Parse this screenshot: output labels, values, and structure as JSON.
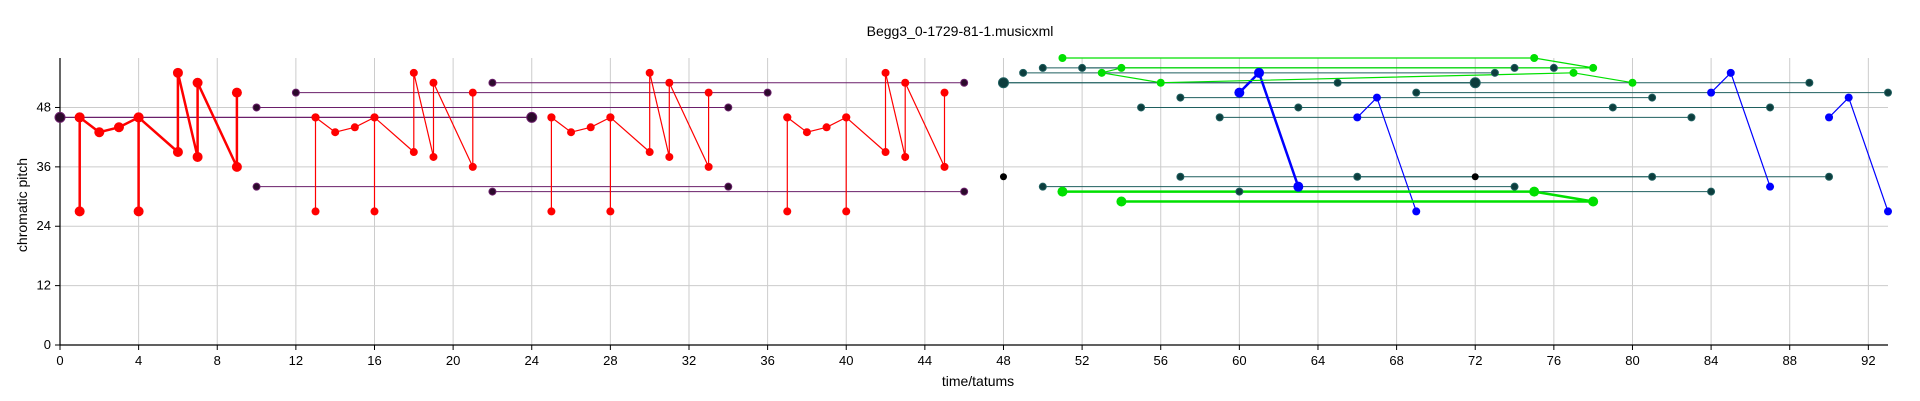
{
  "chart_data": {
    "type": "line",
    "title": "Begg3_0-1729-81-1.musicxml",
    "xlabel": "time/tatums",
    "ylabel": "chromatic pitch",
    "xlim": [
      0,
      93
    ],
    "ylim": [
      0,
      58
    ],
    "xticks": [
      0,
      4,
      8,
      12,
      16,
      20,
      24,
      28,
      32,
      36,
      40,
      44,
      48,
      52,
      56,
      60,
      64,
      68,
      72,
      76,
      80,
      84,
      88,
      92
    ],
    "yticks": [
      0,
      12,
      24,
      36,
      48
    ],
    "grid": true,
    "legend": "none",
    "colors": {
      "red": "#ff0000",
      "purple": "#6a1f6a",
      "teal": "#1f5f5f",
      "blue": "#0000ff",
      "green": "#00e000",
      "dot_dark": "#0d3d3d",
      "dot_purple": "#2b0a2b"
    },
    "series": [
      {
        "color": "#ff0000",
        "width": 2.5,
        "r": 5,
        "points": [
          [
            1,
            46
          ],
          [
            1,
            27
          ],
          [
            1,
            46
          ],
          [
            2,
            43
          ],
          [
            3,
            44
          ],
          [
            4,
            46
          ],
          [
            4,
            27
          ],
          [
            4,
            46
          ],
          [
            6,
            39
          ],
          [
            6,
            55
          ],
          [
            7,
            38
          ],
          [
            7,
            53
          ],
          [
            9,
            36
          ],
          [
            9,
            51
          ]
        ]
      },
      {
        "color": "#ff0000",
        "width": 1.2,
        "r": 4,
        "points": [
          [
            13,
            46
          ],
          [
            13,
            27
          ],
          [
            13,
            46
          ],
          [
            14,
            43
          ],
          [
            15,
            44
          ],
          [
            16,
            46
          ],
          [
            16,
            27
          ],
          [
            16,
            46
          ],
          [
            18,
            39
          ],
          [
            18,
            55
          ],
          [
            19,
            38
          ],
          [
            19,
            53
          ],
          [
            21,
            36
          ],
          [
            21,
            51
          ]
        ]
      },
      {
        "color": "#ff0000",
        "width": 1.2,
        "r": 4,
        "points": [
          [
            25,
            46
          ],
          [
            25,
            27
          ],
          [
            25,
            46
          ],
          [
            26,
            43
          ],
          [
            27,
            44
          ],
          [
            28,
            46
          ],
          [
            28,
            27
          ],
          [
            28,
            46
          ],
          [
            30,
            39
          ],
          [
            30,
            55
          ],
          [
            31,
            38
          ],
          [
            31,
            53
          ],
          [
            33,
            36
          ],
          [
            33,
            51
          ]
        ]
      },
      {
        "color": "#ff0000",
        "width": 1.2,
        "r": 4,
        "points": [
          [
            37,
            46
          ],
          [
            37,
            27
          ],
          [
            37,
            46
          ],
          [
            38,
            43
          ],
          [
            39,
            44
          ],
          [
            40,
            46
          ],
          [
            40,
            27
          ],
          [
            40,
            46
          ],
          [
            42,
            39
          ],
          [
            42,
            55
          ],
          [
            43,
            38
          ],
          [
            43,
            53
          ],
          [
            45,
            36
          ],
          [
            45,
            51
          ]
        ]
      },
      {
        "color": "#0000ff",
        "width": 2.5,
        "r": 5,
        "points": [
          [
            60,
            51
          ],
          [
            61,
            55
          ],
          [
            63,
            32
          ]
        ]
      },
      {
        "color": "#0000ff",
        "width": 1.2,
        "r": 4,
        "points": [
          [
            66,
            46
          ],
          [
            67,
            50
          ],
          [
            69,
            27
          ]
        ]
      },
      {
        "color": "#0000ff",
        "width": 1.2,
        "r": 4,
        "points": [
          [
            84,
            51
          ],
          [
            85,
            55
          ],
          [
            87,
            32
          ]
        ]
      },
      {
        "color": "#0000ff",
        "width": 1.2,
        "r": 4,
        "points": [
          [
            90,
            46
          ],
          [
            91,
            50
          ],
          [
            93,
            27
          ]
        ]
      },
      {
        "color": "#00e000",
        "width": 1.2,
        "r": 4,
        "points": [
          [
            51,
            58
          ],
          [
            75,
            58
          ],
          [
            78,
            56
          ],
          [
            54,
            56
          ],
          [
            53,
            55
          ],
          [
            56,
            53
          ],
          [
            77,
            55
          ],
          [
            80,
            53
          ]
        ]
      },
      {
        "color": "#00e000",
        "width": 2.5,
        "r": 5,
        "points": [
          [
            51,
            31
          ],
          [
            75,
            31
          ],
          [
            78,
            29
          ],
          [
            54,
            29
          ]
        ]
      }
    ],
    "segments": [
      {
        "color": "#6a1f6a",
        "width": 1.2,
        "r": 5,
        "x1": 0,
        "y1": 46,
        "x2": 24,
        "y2": 46
      },
      {
        "color": "#6a1f6a",
        "width": 1,
        "r": 3.5,
        "x1": 10,
        "y1": 48,
        "x2": 34,
        "y2": 48
      },
      {
        "color": "#6a1f6a",
        "width": 1,
        "r": 3.5,
        "x1": 12,
        "y1": 51,
        "x2": 36,
        "y2": 51
      },
      {
        "color": "#6a1f6a",
        "width": 1,
        "r": 3.5,
        "x1": 22,
        "y1": 53,
        "x2": 46,
        "y2": 53
      },
      {
        "color": "#6a1f6a",
        "width": 1,
        "r": 3.5,
        "x1": 10,
        "y1": 32,
        "x2": 34,
        "y2": 32
      },
      {
        "color": "#6a1f6a",
        "width": 1,
        "r": 3.5,
        "x1": 22,
        "y1": 31,
        "x2": 46,
        "y2": 31
      },
      {
        "color": "#1f5f5f",
        "width": 1.2,
        "r": 5,
        "x1": 48,
        "y1": 53,
        "x2": 72,
        "y2": 53
      },
      {
        "color": "#1f5f5f",
        "width": 1,
        "r": 3.5,
        "x1": 49,
        "y1": 55,
        "x2": 73,
        "y2": 55
      },
      {
        "color": "#1f5f5f",
        "width": 1,
        "r": 3.5,
        "x1": 50,
        "y1": 56,
        "x2": 74,
        "y2": 56
      },
      {
        "color": "#1f5f5f",
        "width": 1,
        "r": 3.5,
        "x1": 52,
        "y1": 56,
        "x2": 76,
        "y2": 56
      },
      {
        "color": "#1f5f5f",
        "width": 1,
        "r": 3.5,
        "x1": 65,
        "y1": 53,
        "x2": 89,
        "y2": 53
      },
      {
        "color": "#1f5f5f",
        "width": 1,
        "r": 3.5,
        "x1": 57,
        "y1": 50,
        "x2": 81,
        "y2": 50
      },
      {
        "color": "#1f5f5f",
        "width": 1,
        "r": 3.5,
        "x1": 69,
        "y1": 51,
        "x2": 93,
        "y2": 51
      },
      {
        "color": "#1f5f5f",
        "width": 1,
        "r": 3.5,
        "x1": 55,
        "y1": 48,
        "x2": 79,
        "y2": 48
      },
      {
        "color": "#1f5f5f",
        "width": 1,
        "r": 3.5,
        "x1": 63,
        "y1": 48,
        "x2": 87,
        "y2": 48
      },
      {
        "color": "#1f5f5f",
        "width": 1,
        "r": 3.5,
        "x1": 59,
        "y1": 46,
        "x2": 83,
        "y2": 46
      },
      {
        "color": "#1f5f5f",
        "width": 1,
        "r": 3.5,
        "x1": 50,
        "y1": 32,
        "x2": 74,
        "y2": 32
      },
      {
        "color": "#1f5f5f",
        "width": 1,
        "r": 3.5,
        "x1": 57,
        "y1": 34,
        "x2": 81,
        "y2": 34
      },
      {
        "color": "#1f5f5f",
        "width": 1,
        "r": 3.5,
        "x1": 66,
        "y1": 34,
        "x2": 90,
        "y2": 34
      },
      {
        "color": "#1f5f5f",
        "width": 1,
        "r": 3.5,
        "x1": 60,
        "y1": 31,
        "x2": 84,
        "y2": 31
      }
    ],
    "dots": [
      {
        "color": "#000000",
        "r": 3.5,
        "x": 48,
        "y": 34
      },
      {
        "color": "#000000",
        "r": 3.5,
        "x": 72,
        "y": 34
      }
    ]
  }
}
